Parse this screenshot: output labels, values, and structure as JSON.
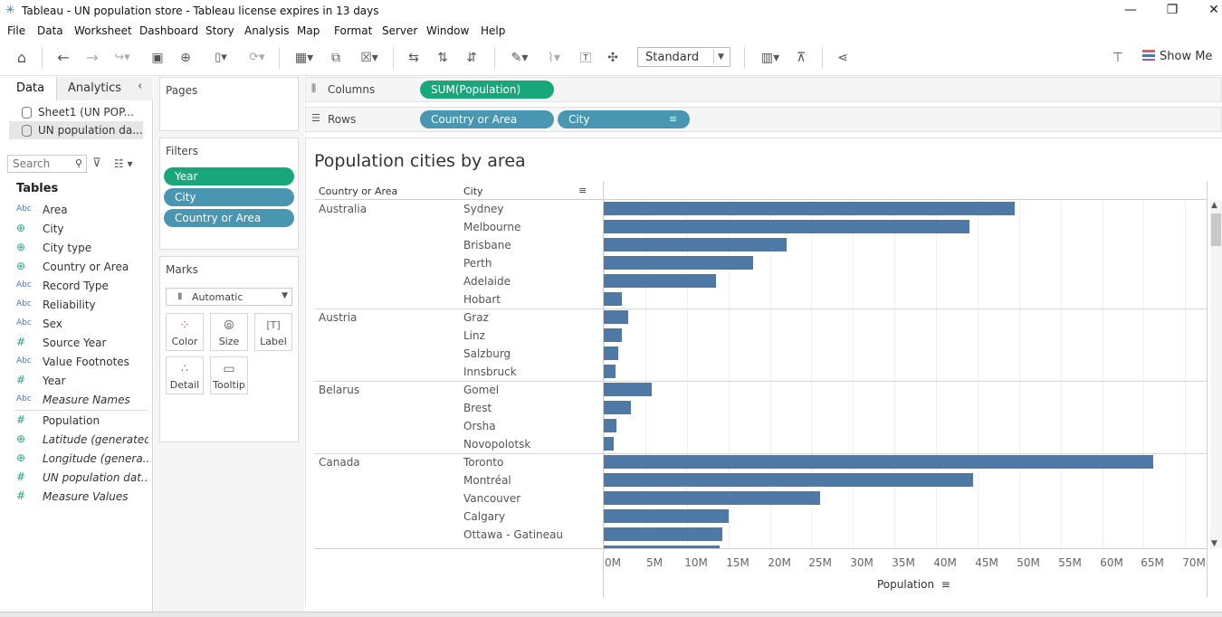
{
  "window": {
    "title": "Tableau - UN population store - Tableau license expires in 13 days",
    "minimize": "—",
    "restore": "❐",
    "close": "✕"
  },
  "menu": [
    "File",
    "Data",
    "Worksheet",
    "Dashboard",
    "Story",
    "Analysis",
    "Map",
    "Format",
    "Server",
    "Window",
    "Help"
  ],
  "toolbar": {
    "fit_value": "Standard",
    "show_me": "Show Me"
  },
  "data_pane": {
    "tab_data": "Data",
    "tab_analytics": "Analytics",
    "datasources": [
      "Sheet1 (UN POP...",
      "UN population da..."
    ],
    "search_placeholder": "Search",
    "tables_heading": "Tables",
    "fields": [
      {
        "type": "Abc",
        "name": "Area"
      },
      {
        "type": "globe",
        "name": "City"
      },
      {
        "type": "globe",
        "name": "City type"
      },
      {
        "type": "globe",
        "name": "Country or Area"
      },
      {
        "type": "Abc",
        "name": "Record Type"
      },
      {
        "type": "Abc",
        "name": "Reliability"
      },
      {
        "type": "Abc",
        "name": "Sex"
      },
      {
        "type": "#",
        "name": "Source Year"
      },
      {
        "type": "Abc",
        "name": "Value Footnotes"
      },
      {
        "type": "#",
        "name": "Year"
      },
      {
        "type": "Abc",
        "name": "Measure Names"
      },
      {
        "type": "#",
        "name": "Population"
      },
      {
        "type": "globe",
        "name": "Latitude (generated)"
      },
      {
        "type": "globe",
        "name": "Longitude (genera..."
      },
      {
        "type": "#",
        "name": "UN population dat..."
      },
      {
        "type": "#",
        "name": "Measure Values"
      }
    ]
  },
  "cards": {
    "pages_title": "Pages",
    "filters_title": "Filters",
    "filters": [
      "Year",
      "City",
      "Country or Area"
    ],
    "marks_title": "Marks",
    "mark_type": "Automatic",
    "mark_buttons": [
      "Color",
      "Size",
      "Label",
      "Detail",
      "Tooltip"
    ]
  },
  "shelves": {
    "columns_label": "Columns",
    "columns_pills": [
      "SUM(Population)"
    ],
    "rows_label": "Rows",
    "rows_pills": [
      "Country or Area",
      "City"
    ]
  },
  "viz": {
    "header_country": "Country or Area",
    "header_city": "City"
  },
  "chart_data": {
    "type": "bar",
    "orientation": "horizontal",
    "title": "Population cities by area",
    "xlabel": "Population",
    "xlim": [
      0,
      73000000
    ],
    "x_ticks": [
      "0M",
      "5M",
      "10M",
      "15M",
      "20M",
      "25M",
      "30M",
      "35M",
      "40M",
      "45M",
      "50M",
      "55M",
      "60M",
      "65M",
      "70M"
    ],
    "groups": [
      {
        "country": "Australia",
        "cities": [
          {
            "name": "Sydney",
            "value": 49500000
          },
          {
            "name": "Melbourne",
            "value": 44000000
          },
          {
            "name": "Brisbane",
            "value": 22000000
          },
          {
            "name": "Perth",
            "value": 18000000
          },
          {
            "name": "Adelaide",
            "value": 13500000
          },
          {
            "name": "Hobart",
            "value": 2200000
          }
        ]
      },
      {
        "country": "Austria",
        "cities": [
          {
            "name": "Graz",
            "value": 2900000
          },
          {
            "name": "Linz",
            "value": 2200000
          },
          {
            "name": "Salzburg",
            "value": 1700000
          },
          {
            "name": "Innsbruck",
            "value": 1400000
          }
        ]
      },
      {
        "country": "Belarus",
        "cities": [
          {
            "name": "Gomel",
            "value": 5800000
          },
          {
            "name": "Brest",
            "value": 3300000
          },
          {
            "name": "Orsha",
            "value": 1500000
          },
          {
            "name": "Novopolotsk",
            "value": 1200000
          }
        ]
      },
      {
        "country": "Canada",
        "cities": [
          {
            "name": "Toronto",
            "value": 66200000
          },
          {
            "name": "Montréal",
            "value": 44500000
          },
          {
            "name": "Vancouver",
            "value": 26000000
          },
          {
            "name": "Calgary",
            "value": 15000000
          },
          {
            "name": "Ottawa - Gatineau",
            "value": 14300000
          },
          {
            "name": "",
            "value": 14000000
          }
        ]
      }
    ],
    "bar_color": "#4e79a7",
    "grid": true
  }
}
